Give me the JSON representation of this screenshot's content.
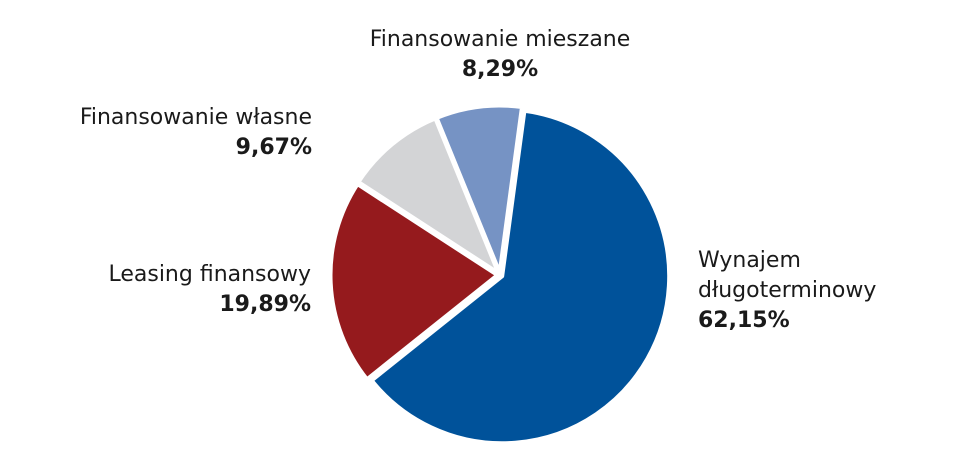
{
  "chart_data": {
    "type": "pie",
    "title": "",
    "slices": [
      {
        "label_lines": [
          "Wynajem",
          "długoterminowy"
        ],
        "value_label": "62,15%",
        "value": 62.15,
        "color": "#00529a"
      },
      {
        "label_lines": [
          "Leasing finansowy"
        ],
        "value_label": "19,89%",
        "value": 19.89,
        "color": "#951a1d"
      },
      {
        "label_lines": [
          "Finansowanie własne"
        ],
        "value_label": "9,67%",
        "value": 9.67,
        "color": "#d3d4d6"
      },
      {
        "label_lines": [
          "Finansowanie mieszane"
        ],
        "value_label": "8,29%",
        "value": 8.29,
        "color": "#7693c4"
      }
    ]
  }
}
